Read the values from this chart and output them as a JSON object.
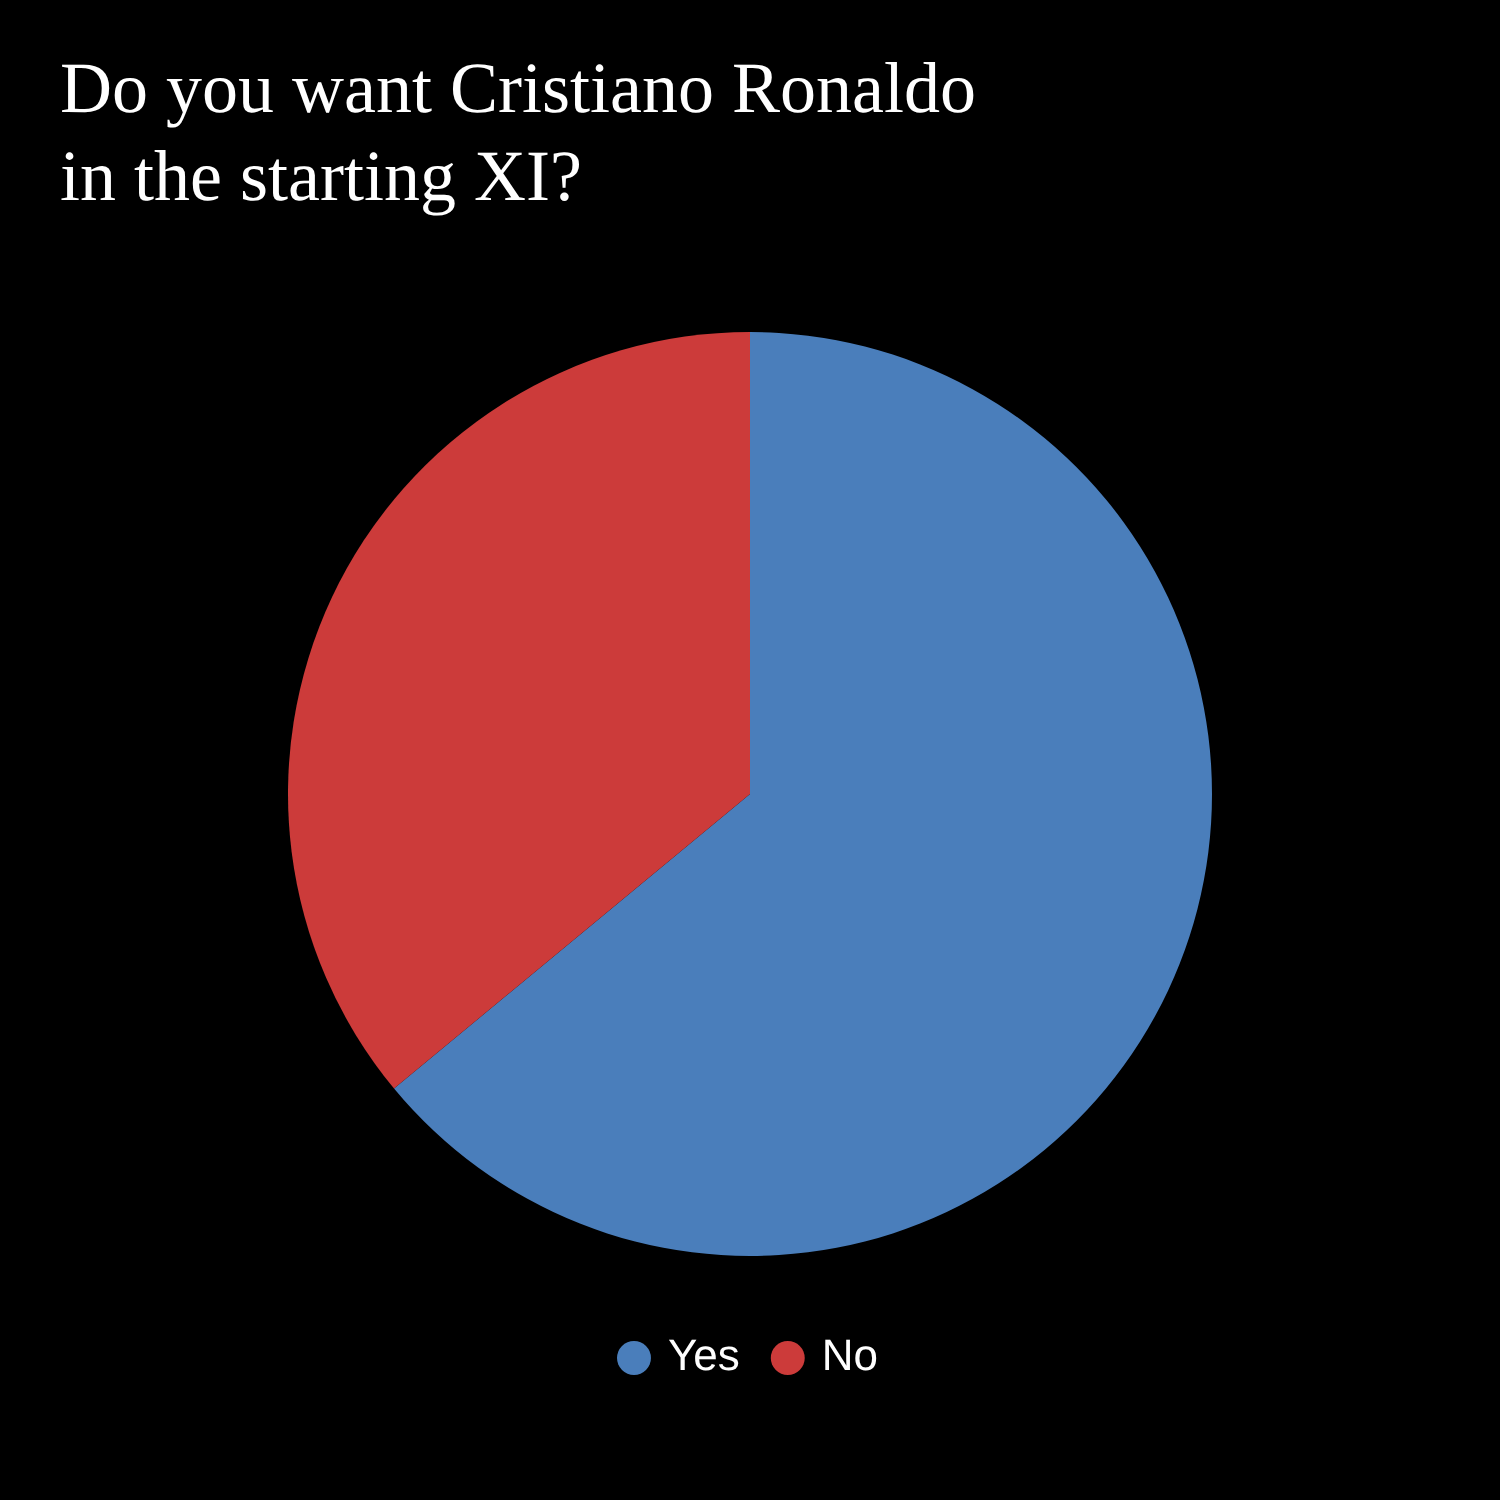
{
  "chart_data": {
    "type": "pie",
    "title": "Do you want Cristiano Ronaldo in the starting XI?",
    "categories": [
      "Yes",
      "No"
    ],
    "values": [
      64,
      36
    ],
    "colors": [
      "#4a7ebb",
      "#cc3b3a"
    ],
    "legend": "bottom"
  }
}
